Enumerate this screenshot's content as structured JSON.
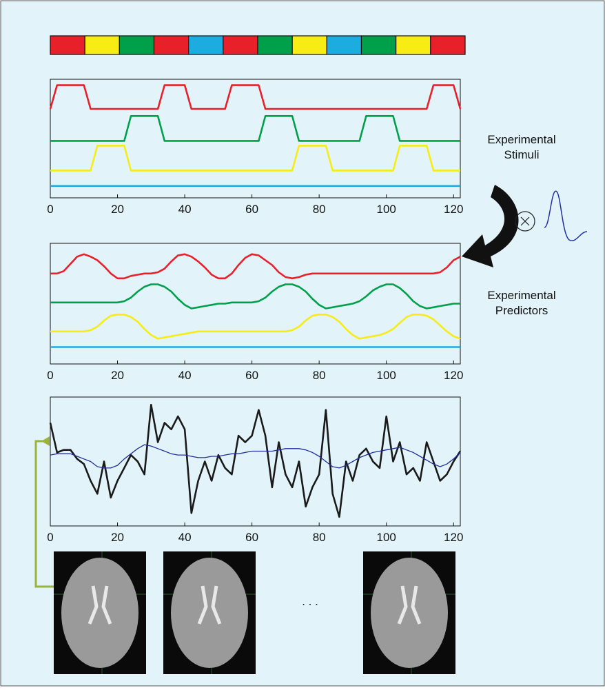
{
  "stimulus_blocks": [
    "#e8202a",
    "#f7ec13",
    "#00a04a",
    "#e8202a",
    "#1cace0",
    "#e8202a",
    "#00a04a",
    "#f7ec13",
    "#1cace0",
    "#00a04a",
    "#f7ec13",
    "#e8202a"
  ],
  "stimuli_label": [
    "Experimental",
    "Stimuli"
  ],
  "predictors_label": [
    "Experimental",
    "Predictors"
  ],
  "ellipsis": ". . .",
  "chart_data": [
    {
      "type": "line",
      "xlim": [
        0,
        122
      ],
      "ylim": [
        0,
        10
      ],
      "xticks": [
        0,
        20,
        40,
        60,
        80,
        100,
        120
      ],
      "x": [
        0,
        2,
        4,
        6,
        8,
        10,
        12,
        14,
        16,
        18,
        20,
        22,
        24,
        26,
        28,
        30,
        32,
        34,
        36,
        38,
        40,
        42,
        44,
        46,
        48,
        50,
        52,
        54,
        56,
        58,
        60,
        62,
        64,
        66,
        68,
        70,
        72,
        74,
        76,
        78,
        80,
        82,
        84,
        86,
        88,
        90,
        92,
        94,
        96,
        98,
        100,
        102,
        104,
        106,
        108,
        110,
        112,
        114,
        116,
        118,
        120,
        122
      ],
      "series": [
        {
          "color": "#e8202a",
          "values": [
            7.5,
            9.5,
            9.5,
            9.5,
            9.5,
            9.5,
            7.5,
            7.5,
            7.5,
            7.5,
            7.5,
            7.5,
            7.5,
            7.5,
            7.5,
            7.5,
            7.5,
            9.5,
            9.5,
            9.5,
            9.5,
            7.5,
            7.5,
            7.5,
            7.5,
            7.5,
            7.5,
            9.5,
            9.5,
            9.5,
            9.5,
            9.5,
            7.5,
            7.5,
            7.5,
            7.5,
            7.5,
            7.5,
            7.5,
            7.5,
            7.5,
            7.5,
            7.5,
            7.5,
            7.5,
            7.5,
            7.5,
            7.5,
            7.5,
            7.5,
            7.5,
            7.5,
            7.5,
            7.5,
            7.5,
            7.5,
            7.5,
            9.5,
            9.5,
            9.5,
            9.5,
            7.5
          ]
        },
        {
          "color": "#00a04a",
          "values": [
            4.8,
            4.8,
            4.8,
            4.8,
            4.8,
            4.8,
            4.8,
            4.8,
            4.8,
            4.8,
            4.8,
            4.8,
            6.9,
            6.9,
            6.9,
            6.9,
            6.9,
            4.8,
            4.8,
            4.8,
            4.8,
            4.8,
            4.8,
            4.8,
            4.8,
            4.8,
            4.8,
            4.8,
            4.8,
            4.8,
            4.8,
            4.8,
            6.9,
            6.9,
            6.9,
            6.9,
            6.9,
            4.8,
            4.8,
            4.8,
            4.8,
            4.8,
            4.8,
            4.8,
            4.8,
            4.8,
            4.8,
            6.9,
            6.9,
            6.9,
            6.9,
            6.9,
            4.8,
            4.8,
            4.8,
            4.8,
            4.8,
            4.8,
            4.8,
            4.8,
            4.8,
            4.8
          ]
        },
        {
          "color": "#f7ec13",
          "values": [
            2.3,
            2.3,
            2.3,
            2.3,
            2.3,
            2.3,
            2.3,
            4.4,
            4.4,
            4.4,
            4.4,
            4.4,
            2.3,
            2.3,
            2.3,
            2.3,
            2.3,
            2.3,
            2.3,
            2.3,
            2.3,
            2.3,
            2.3,
            2.3,
            2.3,
            2.3,
            2.3,
            2.3,
            2.3,
            2.3,
            2.3,
            2.3,
            2.3,
            2.3,
            2.3,
            2.3,
            2.3,
            4.4,
            4.4,
            4.4,
            4.4,
            4.4,
            2.3,
            2.3,
            2.3,
            2.3,
            2.3,
            2.3,
            2.3,
            2.3,
            2.3,
            2.3,
            4.4,
            4.4,
            4.4,
            4.4,
            4.4,
            2.3,
            2.3,
            2.3,
            2.3,
            2.3
          ]
        },
        {
          "color": "#1cace0",
          "values": [
            1,
            1,
            1,
            1,
            1,
            1,
            1,
            1,
            1,
            1,
            1,
            1,
            1,
            1,
            1,
            1,
            1,
            1,
            1,
            1,
            1,
            1,
            1,
            1,
            1,
            1,
            1,
            1,
            1,
            1,
            1,
            1,
            1,
            1,
            1,
            1,
            1,
            1,
            1,
            1,
            1,
            1,
            1,
            1,
            1,
            1,
            1,
            1,
            1,
            1,
            1,
            1,
            1,
            1,
            1,
            1,
            1,
            1,
            1,
            1,
            1,
            1
          ]
        }
      ]
    },
    {
      "type": "line",
      "xlim": [
        0,
        122
      ],
      "ylim": [
        0,
        10
      ],
      "xticks": [
        0,
        20,
        40,
        60,
        80,
        100,
        120
      ],
      "x": [
        0,
        2,
        4,
        6,
        8,
        10,
        12,
        14,
        16,
        18,
        20,
        22,
        24,
        26,
        28,
        30,
        32,
        34,
        36,
        38,
        40,
        42,
        44,
        46,
        48,
        50,
        52,
        54,
        56,
        58,
        60,
        62,
        64,
        66,
        68,
        70,
        72,
        74,
        76,
        78,
        80,
        82,
        84,
        86,
        88,
        90,
        92,
        94,
        96,
        98,
        100,
        102,
        104,
        106,
        108,
        110,
        112,
        114,
        116,
        118,
        120,
        122
      ],
      "series": [
        {
          "color": "#e8202a",
          "values": [
            7.5,
            7.5,
            7.7,
            8.3,
            8.9,
            9.1,
            8.9,
            8.6,
            8.1,
            7.5,
            7.1,
            7.1,
            7.3,
            7.4,
            7.5,
            7.5,
            7.6,
            7.9,
            8.5,
            9.0,
            9.1,
            8.9,
            8.5,
            8.0,
            7.4,
            7.1,
            7.1,
            7.5,
            8.2,
            8.8,
            9.1,
            9.0,
            8.6,
            8.2,
            7.6,
            7.2,
            7.1,
            7.2,
            7.4,
            7.5,
            7.5,
            7.5,
            7.5,
            7.5,
            7.5,
            7.5,
            7.5,
            7.5,
            7.5,
            7.5,
            7.5,
            7.5,
            7.5,
            7.5,
            7.5,
            7.5,
            7.5,
            7.5,
            7.6,
            8.0,
            8.6,
            8.9
          ]
        },
        {
          "color": "#00a04a",
          "values": [
            5.1,
            5.1,
            5.1,
            5.1,
            5.1,
            5.1,
            5.1,
            5.1,
            5.1,
            5.1,
            5.1,
            5.2,
            5.5,
            6.0,
            6.4,
            6.6,
            6.6,
            6.4,
            6.0,
            5.4,
            4.9,
            4.6,
            4.7,
            4.8,
            4.9,
            5.0,
            5.0,
            5.1,
            5.1,
            5.1,
            5.1,
            5.2,
            5.5,
            6.0,
            6.4,
            6.6,
            6.6,
            6.4,
            6.0,
            5.4,
            4.9,
            4.6,
            4.7,
            4.8,
            4.9,
            5.0,
            5.2,
            5.6,
            6.1,
            6.4,
            6.6,
            6.6,
            6.3,
            5.8,
            5.2,
            4.8,
            4.6,
            4.7,
            4.8,
            4.9,
            5.0,
            5.0
          ]
        },
        {
          "color": "#f7ec13",
          "values": [
            2.7,
            2.7,
            2.7,
            2.7,
            2.7,
            2.7,
            2.8,
            3.1,
            3.6,
            4.0,
            4.1,
            4.1,
            3.9,
            3.5,
            2.9,
            2.4,
            2.1,
            2.2,
            2.3,
            2.4,
            2.5,
            2.6,
            2.7,
            2.7,
            2.7,
            2.7,
            2.7,
            2.7,
            2.7,
            2.7,
            2.7,
            2.7,
            2.7,
            2.7,
            2.7,
            2.7,
            2.8,
            3.1,
            3.6,
            4.0,
            4.1,
            4.1,
            3.9,
            3.5,
            2.9,
            2.4,
            2.1,
            2.2,
            2.3,
            2.4,
            2.6,
            2.9,
            3.4,
            3.9,
            4.1,
            4.1,
            4.0,
            3.7,
            3.2,
            2.7,
            2.3,
            2.1
          ]
        },
        {
          "color": "#1cace0",
          "values": [
            1.4,
            1.4,
            1.4,
            1.4,
            1.4,
            1.4,
            1.4,
            1.4,
            1.4,
            1.4,
            1.4,
            1.4,
            1.4,
            1.4,
            1.4,
            1.4,
            1.4,
            1.4,
            1.4,
            1.4,
            1.4,
            1.4,
            1.4,
            1.4,
            1.4,
            1.4,
            1.4,
            1.4,
            1.4,
            1.4,
            1.4,
            1.4,
            1.4,
            1.4,
            1.4,
            1.4,
            1.4,
            1.4,
            1.4,
            1.4,
            1.4,
            1.4,
            1.4,
            1.4,
            1.4,
            1.4,
            1.4,
            1.4,
            1.4,
            1.4,
            1.4,
            1.4,
            1.4,
            1.4,
            1.4,
            1.4,
            1.4,
            1.4,
            1.4,
            1.4,
            1.4,
            1.4
          ]
        }
      ]
    },
    {
      "type": "line",
      "xlim": [
        0,
        122
      ],
      "ylim": [
        0,
        10
      ],
      "xticks": [
        0,
        20,
        40,
        60,
        80,
        100,
        120
      ],
      "x": [
        0,
        2,
        4,
        6,
        8,
        10,
        12,
        14,
        16,
        18,
        20,
        22,
        24,
        26,
        28,
        30,
        32,
        34,
        36,
        38,
        40,
        42,
        44,
        46,
        48,
        50,
        52,
        54,
        56,
        58,
        60,
        62,
        64,
        66,
        68,
        70,
        72,
        74,
        76,
        78,
        80,
        82,
        84,
        86,
        88,
        90,
        92,
        94,
        96,
        98,
        100,
        102,
        104,
        106,
        108,
        110,
        112,
        114,
        116,
        118,
        120,
        122
      ],
      "series": [
        {
          "color": "#1a1a1a",
          "values": [
            8.0,
            5.7,
            5.9,
            5.9,
            5.2,
            4.8,
            3.5,
            2.5,
            5.0,
            2.2,
            3.5,
            4.5,
            5.5,
            5.0,
            4.0,
            9.4,
            6.5,
            8.0,
            7.5,
            8.5,
            7.5,
            1.0,
            3.5,
            5.0,
            3.5,
            5.5,
            4.5,
            4.0,
            7.0,
            6.5,
            7.0,
            9.0,
            7.0,
            3.0,
            6.5,
            4.0,
            3.0,
            5.0,
            1.5,
            3.0,
            4.0,
            9.0,
            2.5,
            0.7,
            5.0,
            3.5,
            5.5,
            6.0,
            5.0,
            4.5,
            8.5,
            5.0,
            6.5,
            4.0,
            4.5,
            3.5,
            6.5,
            5.0,
            3.5,
            4.0,
            5.0,
            5.8
          ]
        },
        {
          "color": "#1f2f9a",
          "values": [
            5.5,
            5.6,
            5.6,
            5.6,
            5.4,
            5.2,
            5.0,
            4.6,
            4.5,
            4.5,
            4.7,
            5.2,
            5.6,
            6.0,
            6.3,
            6.2,
            6.0,
            5.8,
            5.6,
            5.5,
            5.5,
            5.4,
            5.3,
            5.3,
            5.4,
            5.4,
            5.5,
            5.6,
            5.6,
            5.7,
            5.8,
            5.8,
            5.8,
            5.8,
            5.9,
            6.0,
            6.0,
            6.0,
            5.9,
            5.7,
            5.4,
            5.0,
            4.6,
            4.5,
            4.7,
            5.0,
            5.3,
            5.5,
            5.7,
            5.8,
            5.9,
            6.0,
            6.1,
            5.9,
            5.7,
            5.4,
            5.1,
            4.8,
            4.6,
            4.8,
            5.2,
            5.7
          ]
        }
      ]
    }
  ]
}
